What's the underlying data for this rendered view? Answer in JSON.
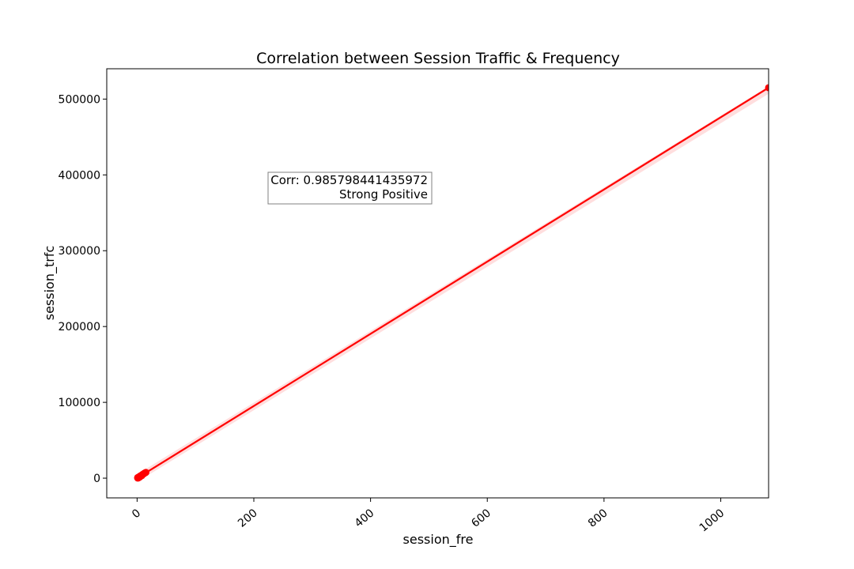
{
  "chart_data": {
    "type": "scatter",
    "title": "Correlation between Session Traffic & Frequency",
    "xlabel": "session_fre",
    "ylabel": "session_trfc",
    "xlim": [
      -52,
      1082
    ],
    "ylim": [
      -26000,
      540000
    ],
    "xticks": [
      0,
      200,
      400,
      600,
      800,
      1000
    ],
    "yticks": [
      0,
      100000,
      200000,
      300000,
      400000,
      500000
    ],
    "grid": false,
    "colors": {
      "points": "#ff0000",
      "line": "#ff0000",
      "band": "#ffc8c8"
    },
    "points": [
      [
        1,
        150
      ],
      [
        2,
        600
      ],
      [
        3,
        900
      ],
      [
        3,
        1500
      ],
      [
        4,
        2100
      ],
      [
        5,
        2600
      ],
      [
        6,
        3000
      ],
      [
        7,
        3600
      ],
      [
        8,
        4100
      ],
      [
        9,
        4600
      ],
      [
        10,
        5200
      ],
      [
        11,
        5600
      ],
      [
        12,
        6200
      ],
      [
        13,
        6700
      ],
      [
        14,
        7100
      ],
      [
        15,
        7600
      ],
      [
        2,
        300
      ],
      [
        4,
        1200
      ],
      [
        6,
        2400
      ],
      [
        8,
        3300
      ],
      [
        10,
        4900
      ],
      [
        1,
        800
      ],
      [
        5,
        1900
      ],
      [
        1082,
        515000
      ]
    ],
    "regression": {
      "x": [
        0,
        1082
      ],
      "y": [
        0,
        515000
      ]
    },
    "annotation": {
      "lines": [
        "Corr: 0.985798441435972",
        "Strong Positive"
      ]
    }
  }
}
